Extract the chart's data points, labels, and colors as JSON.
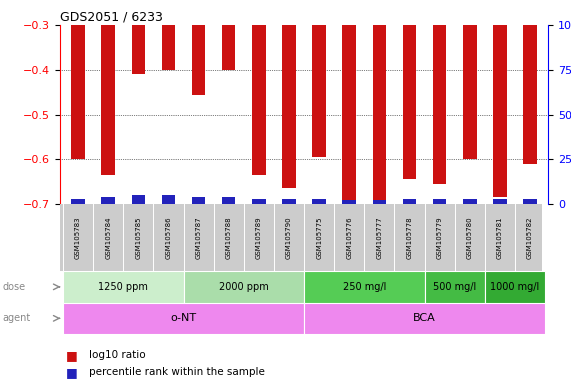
{
  "title": "GDS2051 / 6233",
  "samples": [
    "GSM105783",
    "GSM105784",
    "GSM105785",
    "GSM105786",
    "GSM105787",
    "GSM105788",
    "GSM105789",
    "GSM105790",
    "GSM105775",
    "GSM105776",
    "GSM105777",
    "GSM105778",
    "GSM105779",
    "GSM105780",
    "GSM105781",
    "GSM105782"
  ],
  "log10_ratio": [
    -0.6,
    -0.635,
    -0.41,
    -0.4,
    -0.455,
    -0.4,
    -0.635,
    -0.665,
    -0.595,
    -0.695,
    -0.695,
    -0.645,
    -0.655,
    -0.6,
    -0.685,
    -0.61
  ],
  "percentile_rank": [
    3,
    4,
    5,
    5,
    4,
    4,
    3,
    3,
    3,
    2,
    2,
    3,
    3,
    3,
    3,
    3
  ],
  "ylim_left": [
    -0.7,
    -0.3
  ],
  "yticks_left": [
    -0.7,
    -0.6,
    -0.5,
    -0.4,
    -0.3
  ],
  "ylim_right": [
    0,
    100
  ],
  "yticks_right": [
    0,
    25,
    50,
    75,
    100
  ],
  "ytick_labels_right": [
    "0",
    "25",
    "50",
    "75",
    "100%"
  ],
  "red_color": "#CC1111",
  "blue_color": "#2222BB",
  "bg_color": "#FFFFFF",
  "sample_bg_color": "#CCCCCC",
  "axis_label_color": "#888888",
  "dose_groups": [
    {
      "label": "1250 ppm",
      "start": 0,
      "end": 4,
      "color": "#CCEECC"
    },
    {
      "label": "2000 ppm",
      "start": 4,
      "end": 8,
      "color": "#AADDAA"
    },
    {
      "label": "250 mg/l",
      "start": 8,
      "end": 12,
      "color": "#55CC55"
    },
    {
      "label": "500 mg/l",
      "start": 12,
      "end": 14,
      "color": "#44BB44"
    },
    {
      "label": "1000 mg/l",
      "start": 14,
      "end": 16,
      "color": "#33AA33"
    }
  ],
  "agent_groups": [
    {
      "label": "o-NT",
      "start": 0,
      "end": 8,
      "color": "#EE88EE"
    },
    {
      "label": "BCA",
      "start": 8,
      "end": 16,
      "color": "#EE88EE"
    }
  ]
}
